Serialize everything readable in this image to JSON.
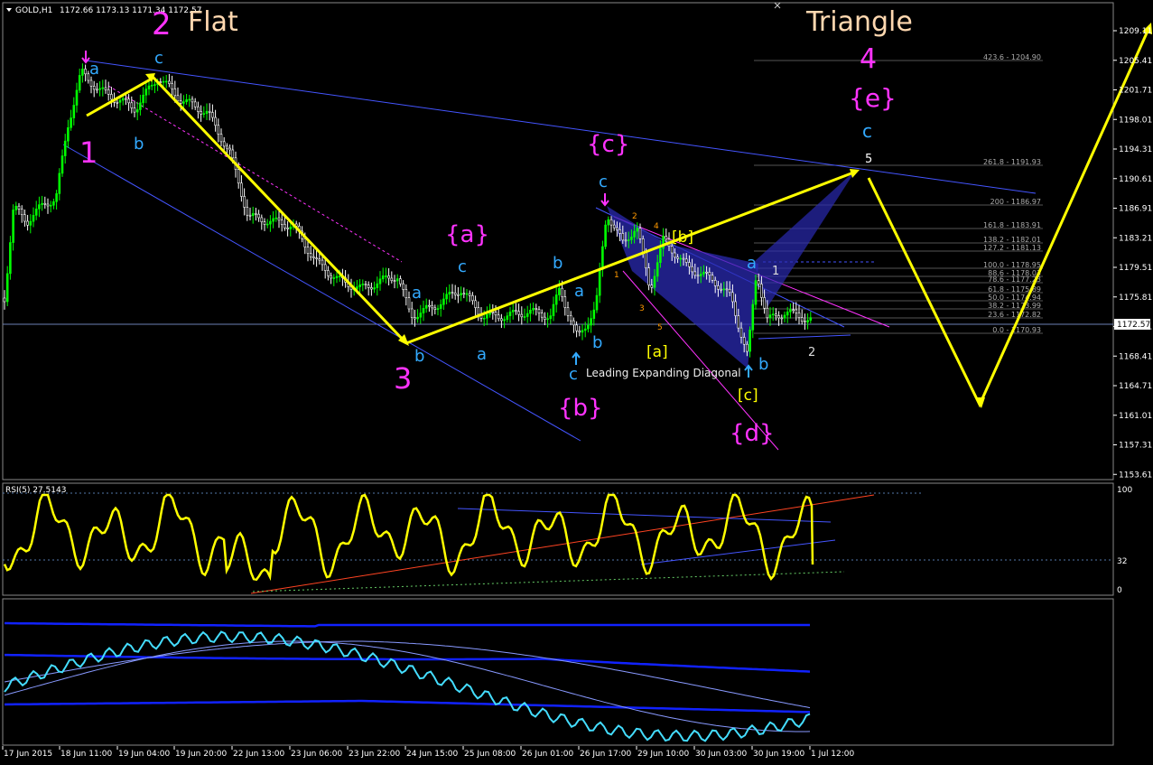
{
  "header": {
    "symbol": "GOLD,H1",
    "quote": "1172.66 1173.13 1171.34 1172.57"
  },
  "price_axis": {
    "ticks": [
      "1209.11",
      "1205.41",
      "1201.71",
      "1198.01",
      "1194.31",
      "1190.61",
      "1186.91",
      "1183.21",
      "1179.51",
      "1175.81",
      "1172.11",
      "1168.41",
      "1164.71",
      "1161.01",
      "1157.31",
      "1153.61"
    ],
    "current": "1172.57"
  },
  "time_axis": {
    "ticks": [
      "17 Jun 2015",
      "18 Jun 11:00",
      "19 Jun 04:00",
      "19 Jun 20:00",
      "22 Jun 13:00",
      "23 Jun 06:00",
      "23 Jun 22:00",
      "24 Jun 15:00",
      "25 Jun 08:00",
      "26 Jun 01:00",
      "26 Jun 17:00",
      "29 Jun 10:00",
      "30 Jun 03:00",
      "30 Jun 19:00",
      "1 Jul 12:00"
    ]
  },
  "fib_levels": [
    "423.6 - 1204.90",
    "261.8 - 1191.93",
    "200 - 1186.97",
    "161.8 - 1183.91",
    "138.2 - 1182.01",
    "127.2 - 1181.13",
    "100.0 - 1178.95",
    "88.6 - 1178.03",
    "78.6 - 1177.23",
    "61.8 - 1175.89",
    "50.0 - 1174.94",
    "38.2 - 1173.99",
    "23.6 - 1172.82",
    "0.0 - 1170.93"
  ],
  "rsi": {
    "label": "RSI(5) 27.5143",
    "levels": [
      "100",
      "32",
      "0"
    ]
  },
  "labels": {
    "flat_num": "2",
    "flat_word": "Flat",
    "triangle_word": "Triangle",
    "triangle_num": "4",
    "w1": "1",
    "w3": "3",
    "e": "{e}",
    "c_top": "c",
    "five": "5",
    "ca": "{a}",
    "cb": "{b}",
    "cc": "{c}",
    "cd": "{d}",
    "ya": "[a]",
    "yb": "[b]",
    "yc": "[c]",
    "lead": "Leading Expanding Diagonal",
    "a1": "a",
    "b1": "b",
    "c1": "c",
    "a2": "a",
    "b2": "b",
    "c3": "c",
    "a3": "a",
    "b3": "b",
    "b4": "b",
    "a4": "a",
    "c4": "c",
    "b5": "b",
    "c5": "c",
    "a6": "a",
    "b6": "b",
    "w_one": "1",
    "w_two": "2",
    "d1": "1",
    "d2": "2",
    "d3": "3",
    "d4": "4",
    "d5": "5"
  },
  "colors": {
    "background": "#000000",
    "bull": "#00ff00",
    "wave": "#ffff00",
    "magenta": "#ff33ff",
    "cyan": "#33aaff",
    "trend": "#4455ff"
  }
}
